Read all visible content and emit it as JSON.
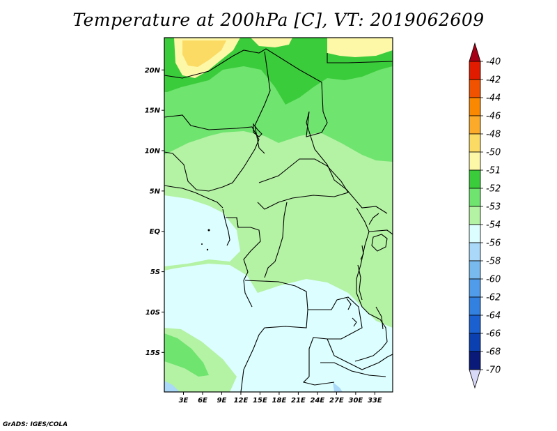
{
  "title": "Temperature at 200hPa [C], VT: 2019062609",
  "credit": "GrADS: IGES/COLA",
  "map": {
    "lat_labels": [
      "20N",
      "15N",
      "10N",
      "5N",
      "EQ",
      "5S",
      "10S",
      "15S"
    ],
    "lat_values": [
      20,
      15,
      10,
      5,
      0,
      -5,
      -10,
      -15
    ],
    "lon_labels": [
      "3E",
      "6E",
      "9E",
      "12E",
      "15E",
      "18E",
      "21E",
      "24E",
      "27E",
      "30E",
      "33E"
    ],
    "lon_values": [
      3,
      6,
      9,
      12,
      15,
      18,
      21,
      24,
      27,
      30,
      33
    ]
  },
  "colorbar": {
    "labels": [
      "-40",
      "-42",
      "-44",
      "-46",
      "-48",
      "-50",
      "-51",
      "-52",
      "-53",
      "-54",
      "-56",
      "-58",
      "-60",
      "-62",
      "-64",
      "-66",
      "-68",
      "-70"
    ],
    "colors": [
      "#a50015",
      "#e11b00",
      "#f05200",
      "#fa8800",
      "#fbaa2a",
      "#fbdb64",
      "#fdf7a8",
      "#3bcc3b",
      "#6fe46f",
      "#b4f2a4",
      "#dcfefe",
      "#aad8f8",
      "#78baee",
      "#509cea",
      "#3280e0",
      "#1a60d0",
      "#0a40b0",
      "#0a1a78",
      "#d8d8f8"
    ]
  }
}
